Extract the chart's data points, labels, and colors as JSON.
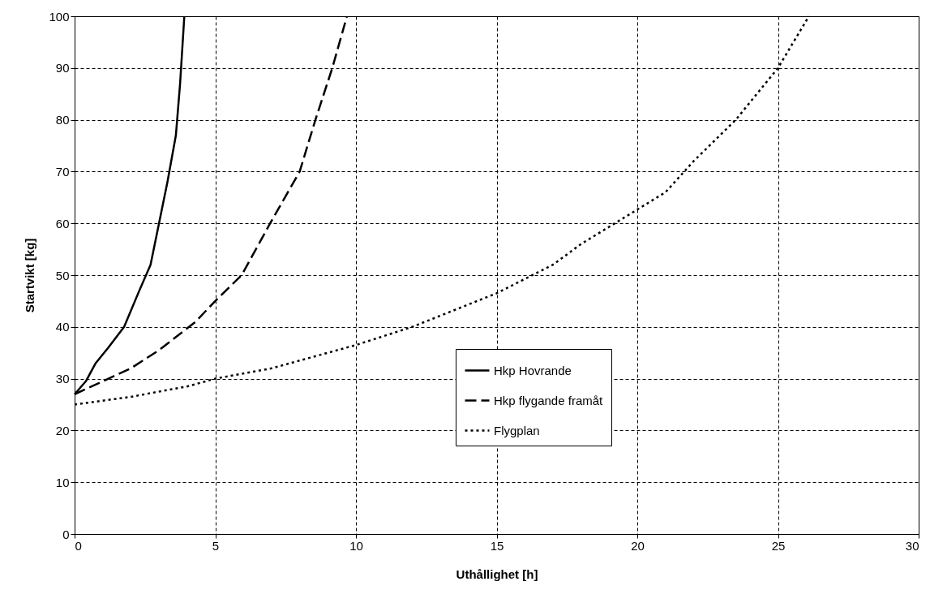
{
  "chart_data": {
    "type": "line",
    "xlabel": "Uthållighet [h]",
    "ylabel": "Startvikt [kg]",
    "xlim": [
      0,
      30
    ],
    "xticks": [
      0,
      5,
      10,
      15,
      20,
      25,
      30
    ],
    "ylim": [
      0,
      100
    ],
    "yticks": [
      0,
      10,
      20,
      30,
      40,
      50,
      60,
      70,
      80,
      90,
      100
    ],
    "grid": true,
    "legend": "center",
    "marker": "none",
    "series": [
      {
        "name": "Hkp Hovrande",
        "color": "#000000",
        "line_style": "solid",
        "x": [
          0,
          0.4,
          0.75,
          1.2,
          1.76,
          2.3,
          2.7,
          3.0,
          3.3,
          3.6,
          3.75,
          3.9
        ],
        "values": [
          27,
          29.5,
          33,
          36,
          40,
          47,
          52,
          60,
          68,
          77,
          87,
          100
        ]
      },
      {
        "name": "Hkp flygande framåt",
        "color": "#000000",
        "line_style": "dashed",
        "x": [
          0,
          1,
          2,
          3,
          4.3,
          5,
          5.94,
          6.95,
          8,
          8.56,
          9.16,
          9.68
        ],
        "values": [
          27,
          29.5,
          32,
          35.5,
          41,
          45,
          50,
          60,
          70,
          80,
          90,
          100
        ]
      },
      {
        "name": "Flygplan",
        "color": "#000000",
        "line_style": "dotted",
        "x": [
          0,
          2,
          4,
          5,
          7,
          10,
          12,
          15,
          17,
          18,
          19.5,
          21,
          22,
          23.5,
          25,
          26.1
        ],
        "values": [
          25,
          26.5,
          28.5,
          30,
          32,
          36.5,
          40,
          46.5,
          52,
          56,
          61,
          66,
          72,
          80,
          90,
          100
        ]
      }
    ]
  }
}
